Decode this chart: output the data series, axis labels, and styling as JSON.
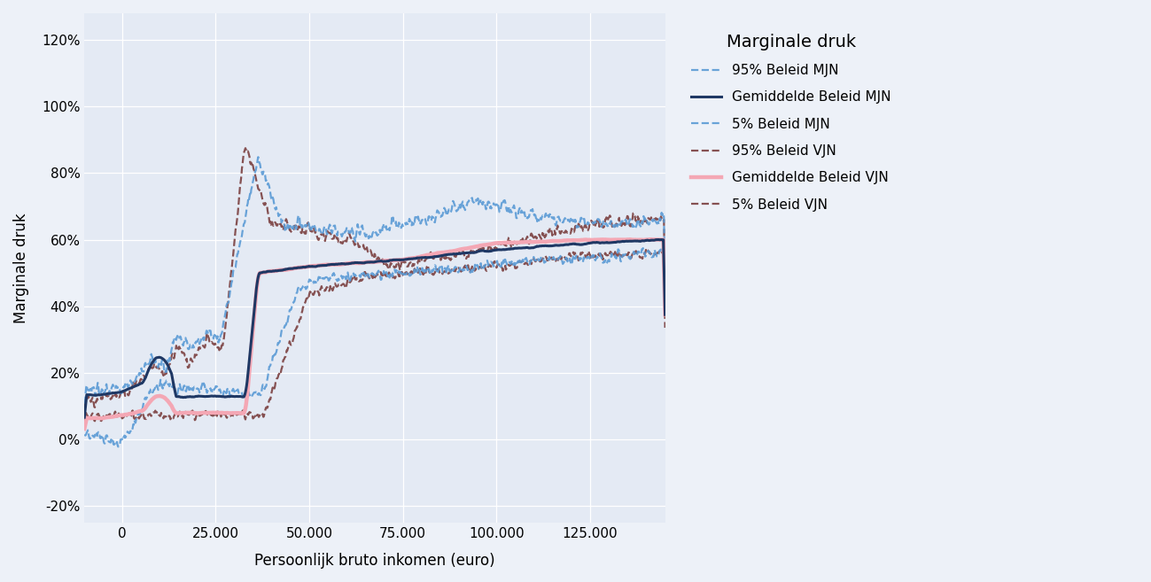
{
  "xlabel": "Persoonlijk bruto inkomen (euro)",
  "ylabel": "Marginale druk",
  "background_color": "#edf1f8",
  "plot_bg_color": "#e4eaf4",
  "xlim": [
    -10000,
    145000
  ],
  "ylim": [
    -0.25,
    1.28
  ],
  "yticks": [
    -0.2,
    0.0,
    0.2,
    0.4,
    0.6,
    0.8,
    1.0,
    1.2
  ],
  "xticks": [
    0,
    25000,
    50000,
    75000,
    100000,
    125000
  ],
  "legend_title": "Marginale druk",
  "lines": [
    {
      "label": "95% Beleid MJN",
      "color": "#5b9bd5",
      "linestyle": "dashed",
      "linewidth": 1.6,
      "zorder": 3,
      "alpha": 0.9
    },
    {
      "label": "Gemiddelde Beleid MJN",
      "color": "#1f3864",
      "linestyle": "solid",
      "linewidth": 2.2,
      "zorder": 5,
      "alpha": 1.0
    },
    {
      "label": "5% Beleid MJN",
      "color": "#5b9bd5",
      "linestyle": "dashed",
      "linewidth": 1.6,
      "zorder": 3,
      "alpha": 0.9
    },
    {
      "label": "95% Beleid VJN",
      "color": "#7b4040",
      "linestyle": "dashed",
      "linewidth": 1.6,
      "zorder": 2,
      "alpha": 0.9
    },
    {
      "label": "Gemiddelde Beleid VJN",
      "color": "#f4a7b4",
      "linestyle": "solid",
      "linewidth": 3.2,
      "zorder": 4,
      "alpha": 1.0
    },
    {
      "label": "5% Beleid VJN",
      "color": "#7b4040",
      "linestyle": "dashed",
      "linewidth": 1.6,
      "zorder": 2,
      "alpha": 0.9
    }
  ]
}
